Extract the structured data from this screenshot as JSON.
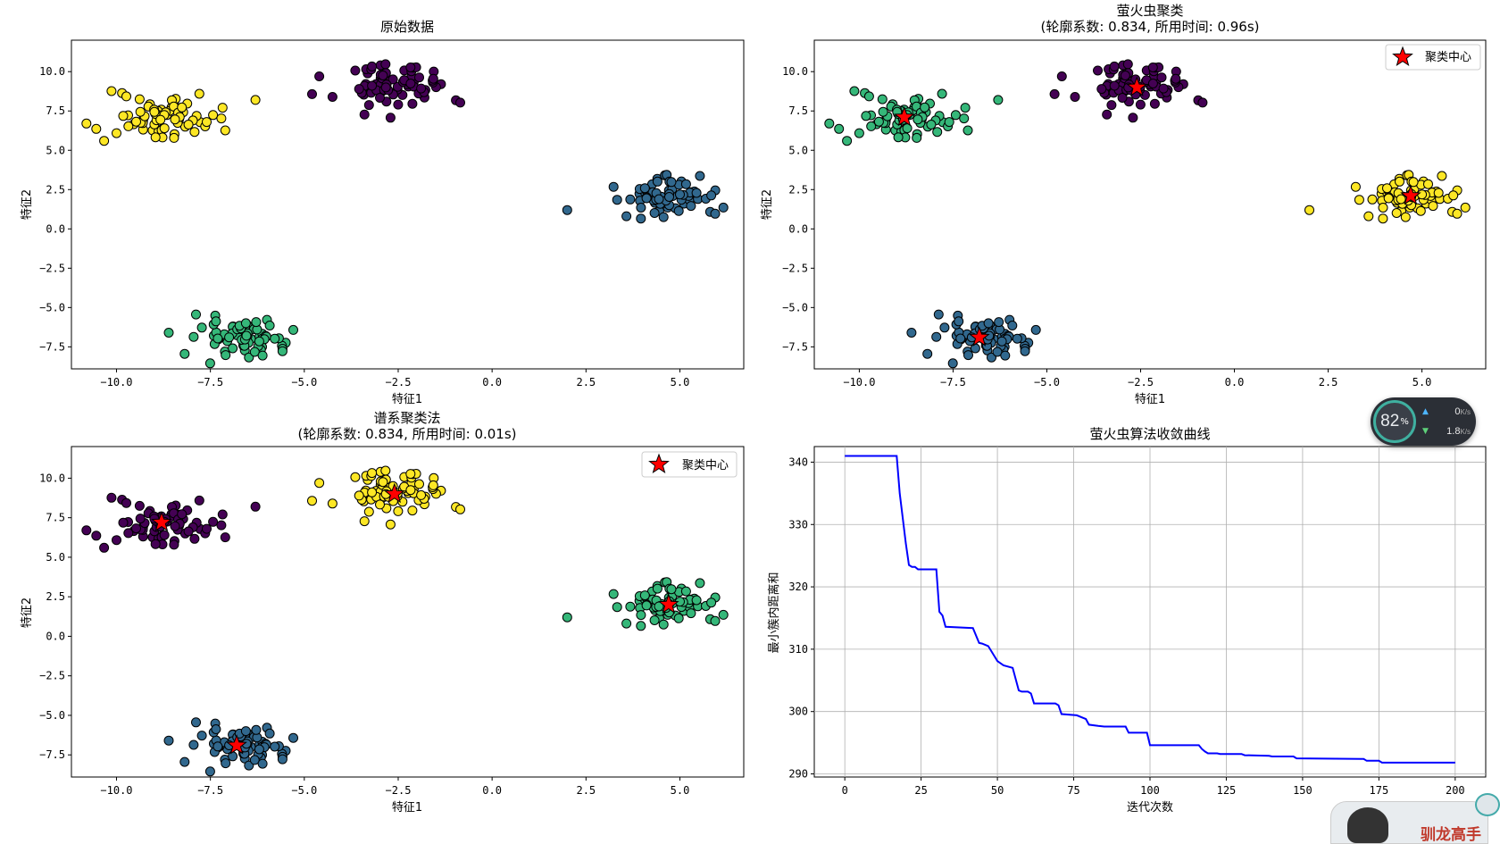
{
  "colors": {
    "viridis4": [
      "#440154",
      "#31688e",
      "#35b779",
      "#fde725"
    ],
    "star": "#ff0000",
    "line": "#0000ff"
  },
  "centers": [
    [
      -2.6,
      9.0
    ],
    [
      4.7,
      2.0
    ],
    [
      -6.8,
      -6.9
    ],
    [
      -8.8,
      7.2
    ]
  ],
  "subplots": [
    {
      "title": "原始数据",
      "xlabel": "特征1",
      "ylabel": "特征2",
      "color_order": [
        0,
        1,
        2,
        3
      ],
      "show_centers": false,
      "x_ticks": [
        "−10.0",
        "−7.5",
        "−5.0",
        "−2.5",
        "0.0",
        "2.5",
        "5.0"
      ],
      "y_ticks": [
        "−7.5",
        "−5.0",
        "−2.5",
        "0.0",
        "2.5",
        "5.0",
        "7.5",
        "10.0"
      ]
    },
    {
      "title": "萤火虫聚类",
      "subtitle": "(轮廓系数: 0.834, 所用时间: 0.96s)",
      "xlabel": "特征1",
      "ylabel": "特征2",
      "color_order": [
        0,
        3,
        1,
        2
      ],
      "show_centers": true,
      "legend": "聚类中心",
      "x_ticks": [
        "−10.0",
        "−7.5",
        "−5.0",
        "−2.5",
        "0.0",
        "2.5",
        "5.0"
      ],
      "y_ticks": [
        "−7.5",
        "−5.0",
        "−2.5",
        "0.0",
        "2.5",
        "5.0",
        "7.5",
        "10.0"
      ]
    },
    {
      "title": "谱系聚类法",
      "subtitle": "(轮廓系数: 0.834, 所用时间: 0.01s)",
      "xlabel": "特征1",
      "ylabel": "特征2",
      "color_order": [
        3,
        2,
        1,
        0
      ],
      "show_centers": true,
      "legend": "聚类中心",
      "x_ticks": [
        "−10.0",
        "−7.5",
        "−5.0",
        "−2.5",
        "0.0",
        "2.5",
        "5.0"
      ],
      "y_ticks": [
        "−7.5",
        "−5.0",
        "−2.5",
        "0.0",
        "2.5",
        "5.0",
        "7.5",
        "10.0"
      ]
    },
    {
      "title": "萤火虫算法收敛曲线",
      "xlabel": "迭代次数",
      "ylabel": "最小簇内距离和",
      "x_ticks": [
        "0",
        "25",
        "50",
        "75",
        "100",
        "125",
        "150",
        "175",
        "200"
      ],
      "y_ticks": [
        "290",
        "300",
        "310",
        "320",
        "330",
        "340"
      ]
    }
  ],
  "chart_data": [
    {
      "type": "scatter",
      "title": "原始数据",
      "xlabel": "特征1",
      "ylabel": "特征2",
      "xlim": [
        -11.2,
        6.7
      ],
      "ylim": [
        -8.9,
        12.0
      ],
      "clusters": [
        {
          "center": [
            -2.6,
            9.0
          ],
          "spread": [
            0.85,
            0.8
          ]
        },
        {
          "center": [
            4.7,
            2.0
          ],
          "spread": [
            0.8,
            0.85
          ]
        },
        {
          "center": [
            -6.8,
            -6.9
          ],
          "spread": [
            0.8,
            0.65
          ]
        },
        {
          "center": [
            -8.8,
            7.2
          ],
          "spread": [
            0.85,
            0.85
          ]
        }
      ],
      "points_per_cluster": 75
    },
    {
      "type": "scatter",
      "title": "萤火虫聚类",
      "subtitle": "(轮廓系数: 0.834, 所用时间: 0.96s)",
      "xlabel": "特征1",
      "ylabel": "特征2",
      "xlim": [
        -11.2,
        6.7
      ],
      "ylim": [
        -8.9,
        12.0
      ],
      "legend": [
        "聚类中心"
      ],
      "legend_position": "upper-right",
      "cluster_centers": [
        [
          -2.6,
          9.0
        ],
        [
          4.7,
          2.1
        ],
        [
          -6.8,
          -6.9
        ],
        [
          -8.8,
          7.1
        ]
      ]
    },
    {
      "type": "scatter",
      "title": "谱系聚类法",
      "subtitle": "(轮廓系数: 0.834, 所用时间: 0.01s)",
      "xlabel": "特征1",
      "ylabel": "特征2",
      "xlim": [
        -11.2,
        6.7
      ],
      "ylim": [
        -8.9,
        12.0
      ],
      "legend": [
        "聚类中心"
      ],
      "legend_position": "upper-right",
      "cluster_centers": [
        [
          -2.6,
          9.0
        ],
        [
          4.7,
          2.0
        ],
        [
          -6.8,
          -6.9
        ],
        [
          -8.8,
          7.2
        ]
      ]
    },
    {
      "type": "line",
      "title": "萤火虫算法收敛曲线",
      "xlabel": "迭代次数",
      "ylabel": "最小簇内距离和",
      "xlim": [
        -10,
        210
      ],
      "ylim": [
        289.5,
        342.5
      ],
      "grid": true,
      "x": [
        0,
        17,
        18,
        19,
        20,
        21,
        22,
        23,
        24,
        30,
        31,
        32,
        33,
        42,
        44,
        45,
        47,
        49,
        50,
        52,
        55,
        57,
        58,
        60,
        61,
        62,
        69,
        70,
        71,
        76,
        79,
        80,
        83,
        85,
        92,
        93,
        99,
        100,
        116,
        117,
        118,
        119,
        122,
        123,
        130,
        131,
        139,
        140,
        147,
        148,
        170,
        171,
        175,
        176,
        200
      ],
      "y": [
        341.0,
        341.0,
        335.0,
        331.0,
        327.0,
        323.5,
        323.2,
        323.2,
        322.8,
        322.8,
        316.0,
        315.4,
        313.6,
        313.4,
        311.0,
        310.9,
        310.5,
        308.9,
        308.1,
        307.4,
        307.0,
        303.4,
        303.2,
        303.2,
        302.9,
        301.3,
        301.3,
        301.0,
        299.6,
        299.4,
        298.8,
        297.9,
        297.7,
        297.6,
        297.6,
        296.6,
        296.6,
        294.6,
        294.6,
        294.0,
        293.6,
        293.3,
        293.3,
        293.2,
        293.2,
        293.0,
        292.9,
        292.8,
        292.8,
        292.5,
        292.4,
        292.1,
        292.1,
        291.8,
        291.8
      ]
    }
  ],
  "net_widget": {
    "percent": "82",
    "percent_unit": "%",
    "up_value": "0",
    "up_unit": "K/s",
    "down_value": "1.8",
    "down_unit": "K/s"
  },
  "mascot": {
    "label": "驯龙高手"
  }
}
